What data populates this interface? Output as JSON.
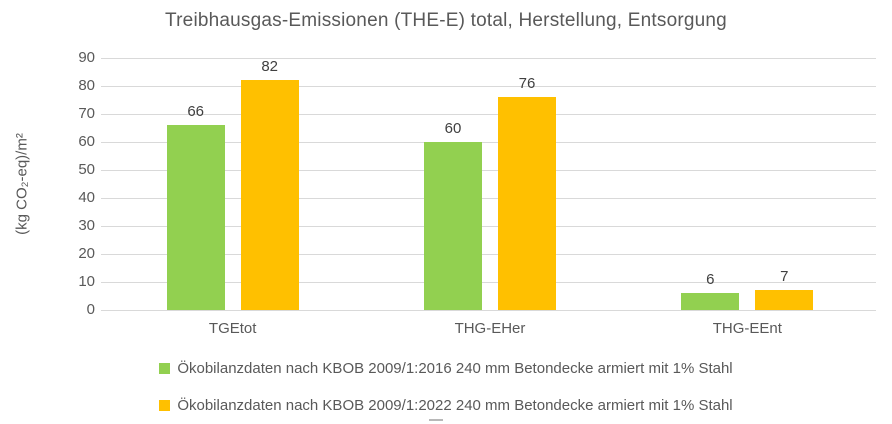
{
  "chart_data": {
    "type": "bar",
    "title": "Treibhausgas-Emissionen (THE-E) total, Herstellung, Entsorgung",
    "ylabel": "(kg CO₂-eq)/m²",
    "xlabel": "",
    "categories": [
      "TGEtot",
      "THG-EHer",
      "THG-EEnt"
    ],
    "series": [
      {
        "name": "Ökobilanzdaten nach KBOB 2009/1:2016 240 mm Betondecke armiert mit 1% Stahl",
        "color": "#92D050",
        "values": [
          66,
          60,
          6
        ]
      },
      {
        "name": "Ökobilanzdaten nach KBOB 2009/1:2022 240 mm Betondecke armiert mit 1% Stahl",
        "color": "#FFC000",
        "values": [
          82,
          76,
          7
        ]
      }
    ],
    "ylim": [
      0,
      90
    ],
    "yticks": [
      0,
      10,
      20,
      30,
      40,
      50,
      60,
      70,
      80,
      90
    ],
    "grid": true,
    "data_labels": true,
    "legend_position": "bottom"
  },
  "colors": {
    "title_text": "#595959",
    "axis_text": "#595959",
    "data_label_text": "#404040",
    "gridline": "#D9D9D9",
    "background": "#FFFFFF"
  }
}
